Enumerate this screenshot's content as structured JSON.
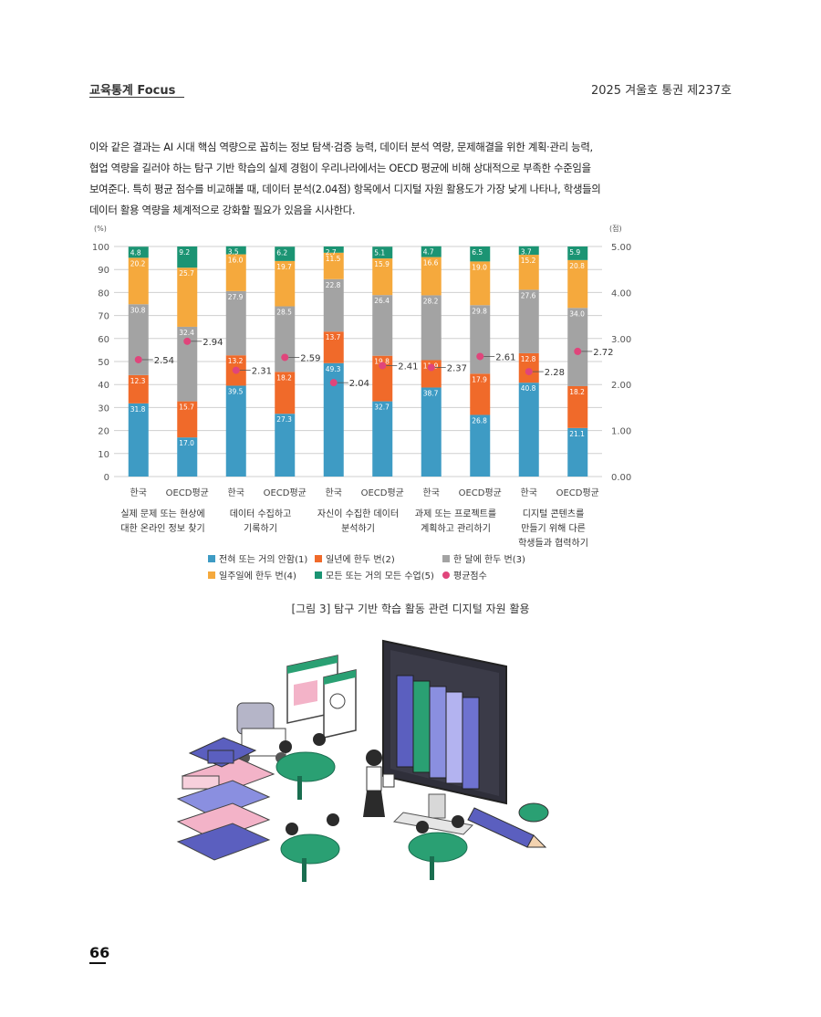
{
  "header": {
    "left": "교육통계 Focus",
    "right": "2025 겨울호 통권 제237호"
  },
  "paragraph": [
    "이와 같은 결과는 AI 시대 핵심 역량으로 꼽히는 정보 탐색·검증 능력, 데이터 분석 역량, 문제해결을 위한 계획·관리 능력,",
    "협업 역량을 길러야 하는 탐구 기반 학습의 실제 경험이 우리나라에서는 OECD 평균에 비해 상대적으로 부족한 수준임을",
    "보여준다. 특히 평균 점수를 비교해볼 때, 데이터 분석(2.04점) 항목에서 디지털 자원 활용도가 가장 낮게 나타나, 학생들의",
    "데이터 활용 역량을 체계적으로 강화할 필요가 있음을 시사한다."
  ],
  "chart_data": {
    "type": "bar",
    "stacked": true,
    "left_unit": "(%)",
    "right_unit": "(점)",
    "ylim": [
      0,
      100
    ],
    "y2lim": [
      0,
      5
    ],
    "yticks": [
      "0",
      "10",
      "20",
      "30",
      "40",
      "50",
      "60",
      "70",
      "80",
      "90",
      "100"
    ],
    "y2ticks": [
      "0.00",
      "1.00",
      "2.00",
      "3.00",
      "4.00",
      "5.00"
    ],
    "bar_labels": [
      "한국",
      "OECD평균",
      "한국",
      "OECD평균",
      "한국",
      "OECD평균",
      "한국",
      "OECD평균",
      "한국",
      "OECD평균"
    ],
    "groups": [
      [
        "실제 문제 또는 현상에",
        "대한 온라인 정보 찾기"
      ],
      [
        "데이터 수집하고",
        "기록하기"
      ],
      [
        "자신이 수집한 데이터",
        "분석하기"
      ],
      [
        "과제 또는 프로젝트를",
        "계획하고 관리하기"
      ],
      [
        "디지털 콘텐츠를",
        "만들기 위해 다른",
        "학생들과 협력하기"
      ]
    ],
    "series": [
      {
        "name": "전혀 또는 거의 안함(1)",
        "color": "#3e9bc4",
        "values": [
          31.8,
          17.0,
          39.5,
          27.3,
          49.3,
          32.7,
          38.7,
          26.8,
          40.8,
          21.1
        ]
      },
      {
        "name": "일년에 한두 번(2)",
        "color": "#f06a2a",
        "values": [
          12.3,
          15.7,
          13.2,
          18.2,
          13.7,
          19.8,
          11.9,
          17.9,
          12.8,
          18.2
        ]
      },
      {
        "name": "한 달에 한두 번(3)",
        "color": "#a3a3a3",
        "values": [
          30.8,
          32.4,
          27.9,
          28.5,
          22.8,
          26.4,
          28.2,
          29.8,
          27.6,
          34.0
        ]
      },
      {
        "name": "일주일에 한두 번(4)",
        "color": "#f5a93d",
        "values": [
          20.2,
          25.7,
          16.0,
          19.7,
          11.5,
          15.9,
          16.6,
          19.0,
          15.2,
          20.8
        ]
      },
      {
        "name": "모든 또는 거의 모든 수업(5)",
        "color": "#1b9473",
        "values": [
          4.8,
          9.2,
          3.5,
          6.2,
          2.7,
          5.1,
          4.7,
          6.5,
          3.7,
          5.9
        ]
      }
    ],
    "average": {
      "name": "평균점수",
      "color": "#e0457b",
      "values": [
        2.54,
        2.94,
        2.31,
        2.59,
        2.04,
        2.41,
        2.37,
        2.61,
        2.28,
        2.72
      ]
    },
    "legend_position": "bottom",
    "grid": true
  },
  "caption": "[그림 3] 탐구 기반 학습 활동 관련 디지털 자원 활용",
  "page_number": "66"
}
